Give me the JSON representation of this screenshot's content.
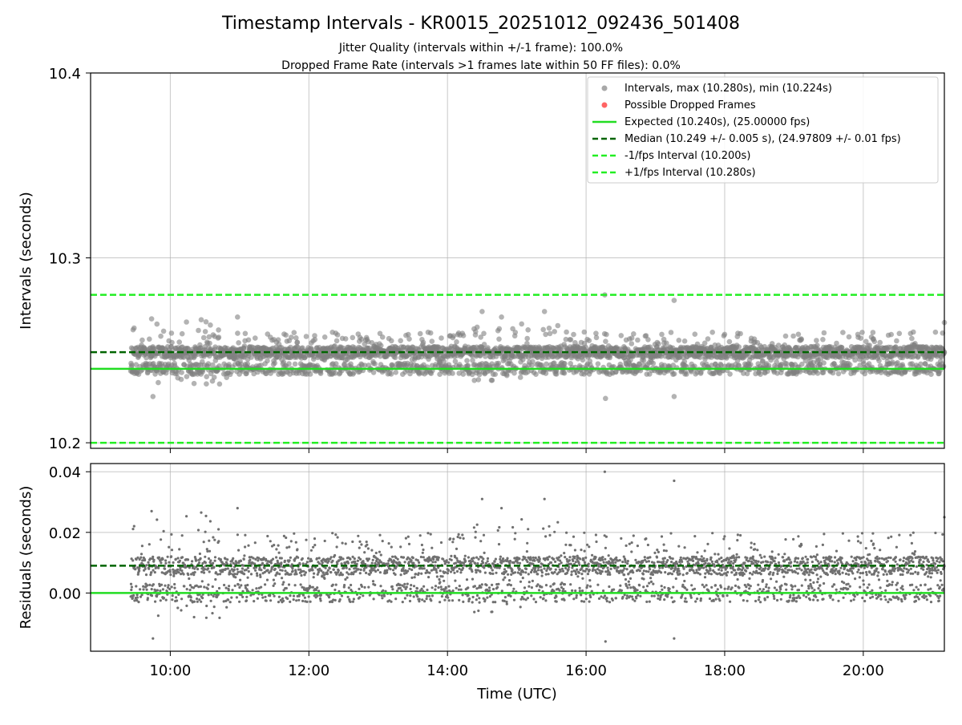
{
  "chart_data": [
    {
      "type": "scatter",
      "panel": "intervals",
      "title": "Timestamp Intervals - KR0015_20251012_092436_501408",
      "subtitle_1": "Jitter Quality (intervals within +/-1 frame): 100.0%",
      "subtitle_2": "Dropped Frame Rate (intervals >1 frames late within 50 FF files): 0.0%",
      "ylabel": "Intervals (seconds)",
      "ylim": [
        10.197,
        10.4
      ],
      "xlim_hours": [
        8.85,
        21.17
      ],
      "ytick_labels": [
        {
          "value": 10.2,
          "label": "10.2"
        },
        {
          "value": 10.3,
          "label": "10.3"
        },
        {
          "value": 10.4,
          "label": "10.4"
        }
      ],
      "grid": true,
      "series_summary": {
        "start_hour": 9.43,
        "end_hour": 21.17,
        "count": 3200,
        "max": 10.28,
        "min": 10.224,
        "median": 10.249
      },
      "reference_lines": [
        {
          "name": "expected",
          "value": 10.24,
          "style": "solid",
          "color": "#22dd22"
        },
        {
          "name": "median",
          "value": 10.249,
          "style": "dashed",
          "color": "#006400"
        },
        {
          "name": "minus_one_fps",
          "value": 10.2,
          "style": "dashed",
          "color": "#22ee22"
        },
        {
          "name": "plus_one_fps",
          "value": 10.28,
          "style": "dashed",
          "color": "#22ee22"
        }
      ],
      "outliers": [
        {
          "hour": 16.27,
          "value": 10.28
        },
        {
          "hour": 17.27,
          "value": 10.277
        },
        {
          "hour": 16.28,
          "value": 10.224
        },
        {
          "hour": 17.27,
          "value": 10.225
        },
        {
          "hour": 9.75,
          "value": 10.225
        },
        {
          "hour": 14.5,
          "value": 10.271
        },
        {
          "hour": 15.4,
          "value": 10.271
        },
        {
          "hour": 21.17,
          "value": 10.265
        },
        {
          "hour": 9.73,
          "value": 10.267
        },
        {
          "hour": 10.97,
          "value": 10.268
        },
        {
          "hour": 14.78,
          "value": 10.268
        }
      ],
      "legend_position": "upper right",
      "legend": [
        {
          "marker": "dot",
          "color": "#a8a8a8",
          "label": "Intervals, max (10.280s), min (10.224s)"
        },
        {
          "marker": "dot",
          "color": "#ff6464",
          "label": "Possible Dropped Frames"
        },
        {
          "marker": "line",
          "dash": false,
          "color": "#22dd22",
          "label": "Expected (10.240s), (25.00000 fps)"
        },
        {
          "marker": "line",
          "dash": true,
          "color": "#006400",
          "label": "Median (10.249 +/- 0.005 s), (24.97809 +/- 0.01 fps)"
        },
        {
          "marker": "line",
          "dash": true,
          "color": "#22ee22",
          "label": "-1/fps Interval (10.200s)"
        },
        {
          "marker": "line",
          "dash": true,
          "color": "#22ee22",
          "label": "+1/fps Interval (10.280s)"
        }
      ]
    },
    {
      "type": "scatter",
      "panel": "residuals",
      "ylabel": "Residuals (seconds)",
      "xlabel": "Time (UTC)",
      "ylim": [
        -0.0192,
        0.0427
      ],
      "xlim_hours": [
        8.85,
        21.17
      ],
      "ytick_labels": [
        {
          "value": 0.0,
          "label": "0.00"
        },
        {
          "value": 0.02,
          "label": "0.02"
        },
        {
          "value": 0.04,
          "label": "0.04"
        }
      ],
      "xtick_labels": [
        {
          "value": 10,
          "label": "10:00"
        },
        {
          "value": 12,
          "label": "12:00"
        },
        {
          "value": 14,
          "label": "14:00"
        },
        {
          "value": 16,
          "label": "16:00"
        },
        {
          "value": 18,
          "label": "18:00"
        },
        {
          "value": 20,
          "label": "20:00"
        }
      ],
      "grid": true,
      "reference_lines": [
        {
          "name": "zero",
          "value": 0.0,
          "style": "solid",
          "color": "#22dd22"
        },
        {
          "name": "median_residual",
          "value": 0.009,
          "style": "dashed",
          "color": "#006400"
        }
      ]
    }
  ]
}
